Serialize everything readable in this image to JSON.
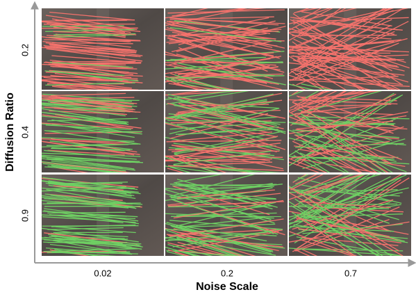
{
  "x_axis": {
    "title": "Noise Scale",
    "labels": [
      "0.02",
      "0.2",
      "0.7"
    ]
  },
  "y_axis": {
    "title": "Diffusion Ratio",
    "labels": [
      "0.2",
      "0.4",
      "0.9"
    ]
  }
}
